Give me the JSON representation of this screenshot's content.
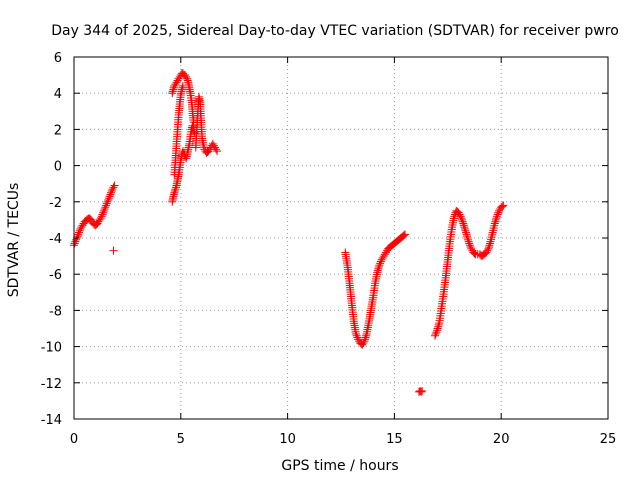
{
  "chart_data": {
    "type": "scatter",
    "title": "Day 344 of 2025, Sidereal Day-to-day VTEC variation (SDTVAR) for receiver pwro",
    "xlabel": "GPS time / hours",
    "ylabel": "SDTVAR / TECUs",
    "xlim": [
      0,
      25
    ],
    "ylim": [
      -14,
      6
    ],
    "xticks": [
      0,
      5,
      10,
      15,
      20,
      25
    ],
    "yticks": [
      -14,
      -12,
      -10,
      -8,
      -6,
      -4,
      -2,
      0,
      2,
      4,
      6
    ],
    "grid": true,
    "marker": "+",
    "color": "#ff0000",
    "series": [
      {
        "name": "seg1",
        "x": [
          0.0,
          0.1,
          0.2,
          0.3,
          0.4,
          0.5,
          0.6,
          0.7,
          0.8,
          0.9,
          1.0,
          1.1,
          1.2,
          1.3,
          1.4,
          1.5,
          1.6,
          1.7,
          1.8,
          1.9
        ],
        "y": [
          -4.4,
          -4.1,
          -3.8,
          -3.5,
          -3.3,
          -3.1,
          -3.0,
          -2.9,
          -3.0,
          -3.2,
          -3.3,
          -3.2,
          -3.0,
          -2.8,
          -2.5,
          -2.2,
          -1.9,
          -1.6,
          -1.3,
          -1.1
        ]
      },
      {
        "name": "outlier1",
        "x": [
          1.85
        ],
        "y": [
          -4.7
        ]
      },
      {
        "name": "seg2a",
        "x": [
          4.6,
          4.65,
          4.7,
          4.75,
          4.8,
          4.85,
          4.9,
          4.95,
          5.0,
          5.05,
          5.1,
          5.15,
          5.2,
          5.25,
          5.3,
          5.35,
          5.4,
          5.45,
          5.5,
          5.55,
          5.6,
          5.65
        ],
        "y": [
          -2.0,
          -1.7,
          -1.5,
          -1.3,
          -1.1,
          -0.8,
          -0.5,
          -0.1,
          0.3,
          0.6,
          0.8,
          0.7,
          0.5,
          0.4,
          0.6,
          0.9,
          1.2,
          1.6,
          2.0,
          2.2,
          2.0,
          1.8
        ]
      },
      {
        "name": "seg2b",
        "x": [
          4.6,
          4.65,
          4.7,
          4.75,
          4.8,
          4.85,
          4.9,
          4.95,
          5.0,
          5.05,
          5.1,
          5.15,
          5.2,
          5.25,
          5.3,
          5.35,
          5.4,
          5.45,
          5.5,
          5.55,
          5.6
        ],
        "y": [
          4.0,
          4.2,
          4.4,
          4.5,
          4.6,
          4.7,
          4.8,
          4.9,
          5.0,
          5.1,
          5.1,
          5.0,
          5.0,
          4.9,
          4.8,
          4.6,
          4.3,
          4.0,
          3.6,
          3.0,
          2.4
        ]
      },
      {
        "name": "seg2c",
        "x": [
          4.7,
          4.75,
          4.8,
          4.85,
          4.9,
          4.95,
          5.0,
          5.05,
          5.1
        ],
        "y": [
          -0.5,
          0.3,
          1.2,
          2.0,
          2.8,
          3.4,
          3.9,
          4.2,
          4.4
        ]
      },
      {
        "name": "seg2d",
        "x": [
          5.7,
          5.75,
          5.8,
          5.85,
          5.9,
          5.95,
          6.0,
          6.1,
          6.2,
          6.3,
          6.4,
          6.5,
          6.6,
          6.7
        ],
        "y": [
          1.0,
          2.0,
          3.0,
          3.8,
          3.5,
          2.5,
          1.5,
          0.9,
          0.7,
          0.8,
          1.0,
          1.2,
          1.0,
          0.8
        ]
      },
      {
        "name": "seg3",
        "x": [
          12.7,
          12.8,
          12.9,
          13.0,
          13.1,
          13.2,
          13.3,
          13.4,
          13.5,
          13.6,
          13.7,
          13.8,
          13.9,
          14.0,
          14.1,
          14.2,
          14.3,
          14.4,
          14.5,
          14.6,
          14.7,
          14.8,
          14.9,
          15.0,
          15.1,
          15.2,
          15.3,
          15.4,
          15.5
        ],
        "y": [
          -4.8,
          -5.5,
          -6.5,
          -7.6,
          -8.6,
          -9.3,
          -9.6,
          -9.8,
          -9.9,
          -9.7,
          -9.3,
          -8.7,
          -8.0,
          -7.3,
          -6.5,
          -5.9,
          -5.5,
          -5.2,
          -5.0,
          -4.8,
          -4.6,
          -4.5,
          -4.4,
          -4.3,
          -4.2,
          -4.1,
          -4.0,
          -3.9,
          -3.8
        ]
      },
      {
        "name": "outlier2",
        "x": [
          16.15,
          16.2,
          16.25,
          16.3
        ],
        "y": [
          -12.5,
          -12.45,
          -12.5,
          -12.45
        ]
      },
      {
        "name": "seg4",
        "x": [
          16.9,
          17.0,
          17.1,
          17.2,
          17.3,
          17.4,
          17.5,
          17.6,
          17.7,
          17.8,
          17.9,
          18.0,
          18.1,
          18.2,
          18.3,
          18.4,
          18.5,
          18.6,
          18.7,
          18.8,
          18.9,
          19.0,
          19.1,
          19.2,
          19.3,
          19.4,
          19.5,
          19.6,
          19.7,
          19.8,
          19.9,
          20.0,
          20.1
        ],
        "y": [
          -9.4,
          -9.1,
          -8.7,
          -7.9,
          -7.1,
          -6.2,
          -5.2,
          -4.2,
          -3.4,
          -2.8,
          -2.5,
          -2.6,
          -2.8,
          -3.1,
          -3.5,
          -3.9,
          -4.3,
          -4.6,
          -4.8,
          -4.9,
          -4.9,
          -4.9,
          -5.0,
          -4.9,
          -4.8,
          -4.6,
          -4.2,
          -3.7,
          -3.2,
          -2.8,
          -2.5,
          -2.3,
          -2.2
        ]
      }
    ]
  }
}
